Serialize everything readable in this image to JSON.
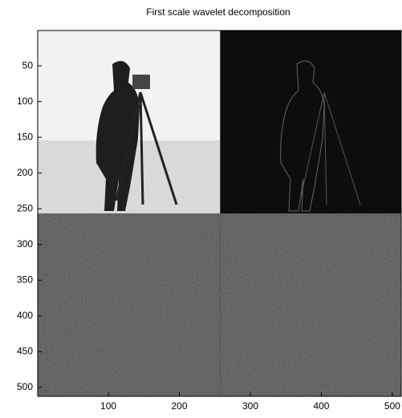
{
  "chart_data": {
    "type": "image",
    "title": "First scale wavelet decomposition",
    "xlim": [
      0.5,
      512.5
    ],
    "xticks": [
      100,
      200,
      300,
      400,
      500
    ],
    "ylim": [
      512.5,
      0.5
    ],
    "yticks": [
      50,
      100,
      150,
      200,
      250,
      300,
      350,
      400,
      450,
      500
    ]
  }
}
